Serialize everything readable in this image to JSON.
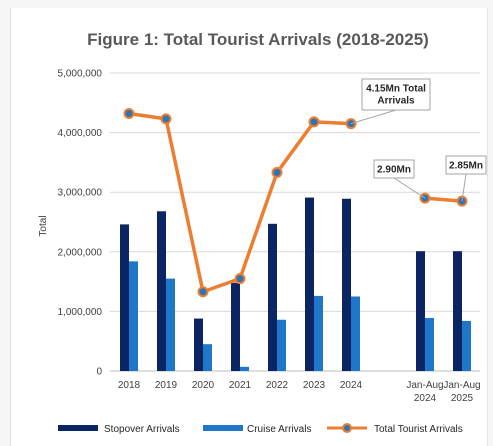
{
  "chart_data": {
    "type": "bar",
    "title": "Figure 1: Total Tourist Arrivals (2018-2025)",
    "ylabel": "Total",
    "xlabel": "",
    "ylim": [
      0,
      5000000
    ],
    "yticks": [
      "0",
      "1,000,000",
      "2,000,000",
      "3,000,000",
      "4,000,000",
      "5,000,000"
    ],
    "categories": [
      [
        "2018"
      ],
      [
        "2019"
      ],
      [
        "2020"
      ],
      [
        "2021"
      ],
      [
        "2022"
      ],
      [
        "2023"
      ],
      [
        "2024"
      ],
      [
        "Jan-Aug",
        "2024"
      ],
      [
        "Jan-Aug",
        "2025"
      ]
    ],
    "series": [
      {
        "name": "Stopover Arrivals",
        "kind": "bar",
        "color": "#0b2463",
        "values": [
          2460000,
          2680000,
          880000,
          1480000,
          2470000,
          2910000,
          2890000,
          2010000,
          2010000
        ]
      },
      {
        "name": "Cruise Arrivals",
        "kind": "bar",
        "color": "#1f77c9",
        "values": [
          1840000,
          1550000,
          450000,
          70000,
          860000,
          1260000,
          1250000,
          890000,
          840000
        ]
      },
      {
        "name": "Total Tourist Arrivals",
        "kind": "line",
        "color": "#ed7d31",
        "values": [
          4320000,
          4230000,
          1330000,
          1550000,
          3330000,
          4180000,
          4150000,
          2900000,
          2850000
        ]
      }
    ],
    "annotations": [
      {
        "text": "4.15Mn Total Arrivals",
        "lines": [
          "4.15Mn Total",
          "Arrivals"
        ],
        "point_index": 6
      },
      {
        "text": "2.90Mn",
        "lines": [
          "2.90Mn"
        ],
        "point_index": 7
      },
      {
        "text": "2.85Mn",
        "lines": [
          "2.85Mn"
        ],
        "point_index": 8
      }
    ],
    "grid": true,
    "legend": "bottom"
  }
}
